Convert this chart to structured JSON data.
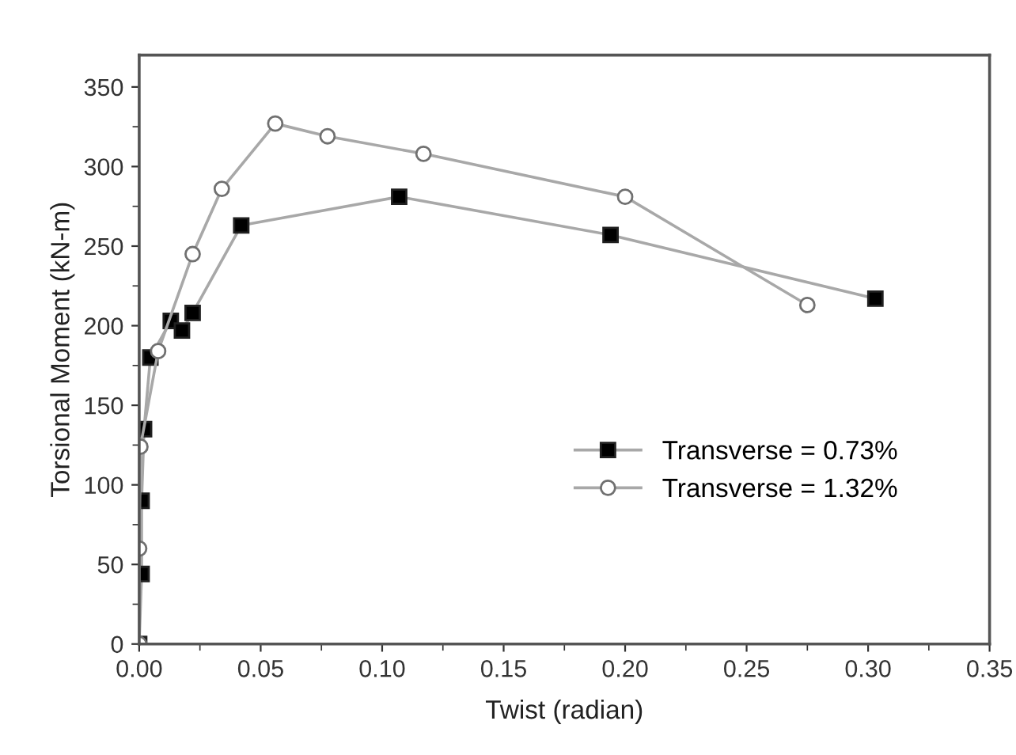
{
  "chart_data": {
    "type": "line",
    "xlabel": "Twist (radian)",
    "ylabel": "Torsional Moment (kN-m)",
    "xlim": [
      0,
      0.35
    ],
    "xticks": [
      {
        "value": 0,
        "label": "0.00"
      },
      {
        "value": 0.05,
        "label": "0.05"
      },
      {
        "value": 0.1,
        "label": "0.10"
      },
      {
        "value": 0.15,
        "label": "0.15"
      },
      {
        "value": 0.2,
        "label": "0.20"
      },
      {
        "value": 0.25,
        "label": "0.25"
      },
      {
        "value": 0.3,
        "label": "0.30"
      },
      {
        "value": 0.35,
        "label": "0.35"
      }
    ],
    "ylim": [
      0,
      370
    ],
    "yticks": [
      0,
      50,
      100,
      150,
      200,
      250,
      300,
      350
    ],
    "grid": false,
    "legend": "bottom right",
    "line_style": "solid",
    "series": [
      {
        "name": "Transverse = 0.73%",
        "color": "#000000",
        "marker": "square",
        "x": [
          0,
          0.001,
          0.001,
          0.002,
          0.0046,
          0.013,
          0.0176,
          0.022,
          0.042,
          0.107,
          0.194,
          0.303
        ],
        "values": [
          0,
          44,
          90,
          135,
          180,
          203,
          197,
          208,
          263,
          281,
          257,
          217
        ]
      },
      {
        "name": "Transverse = 1.32%",
        "color": "#ffffff",
        "marker": "circle",
        "x": [
          0,
          0,
          0.0005,
          0.0078,
          0.022,
          0.034,
          0.056,
          0.0775,
          0.117,
          0.2,
          0.275
        ],
        "values": [
          0,
          60,
          124,
          184,
          245,
          286,
          327,
          319,
          308,
          281,
          213
        ]
      }
    ]
  }
}
